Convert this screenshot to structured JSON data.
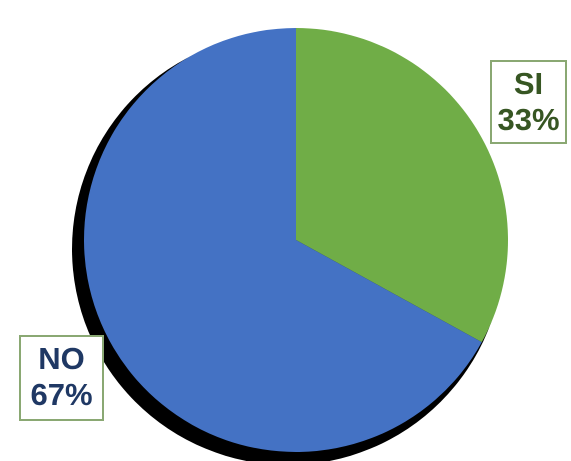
{
  "chart_data": {
    "type": "pie",
    "categories": [
      "SI",
      "NO"
    ],
    "values": [
      33,
      67
    ],
    "value_labels": [
      "33%",
      "67%"
    ],
    "colors": [
      "#70ad47",
      "#4472c4"
    ],
    "label_colors": [
      "#375623",
      "#1f3864"
    ],
    "outline_color": "#000000",
    "legend": "none"
  }
}
